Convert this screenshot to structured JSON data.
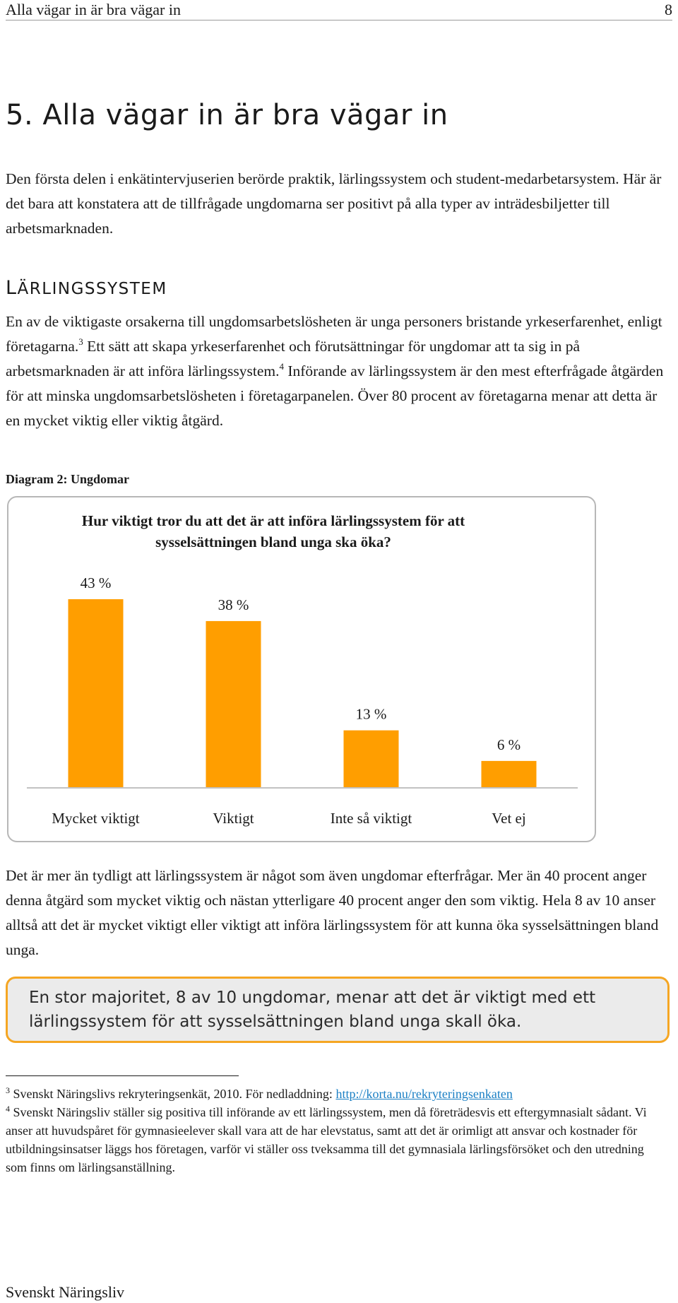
{
  "header": {
    "title": "Alla vägar in är bra vägar in",
    "page_number": "8"
  },
  "section_title": "5.   Alla vägar in är bra vägar in",
  "intro_paragraph": "Den första delen i enkätintervjuserien berörde praktik, lärlingssystem och student-medarbetarsystem. Här är det bara att konstatera att de tillfrågade ungdomarna ser positivt på alla typer av inträdesbiljetter till arbetsmarknaden.",
  "subheading": {
    "first_letter": "L",
    "rest": "ärlingssystem"
  },
  "para2": {
    "part1": "En av de viktigaste orsakerna till ungdomsarbetslösheten är unga personers bristande yrkeserfarenhet, enligt företagarna.",
    "fn1": "3",
    "part2": " Ett sätt att skapa yrkeserfarenhet och förutsättningar för ungdomar att ta sig in på arbetsmarknaden är att införa lärlingssystem.",
    "fn2": "4",
    "part3": " Införande av lärlingssystem är den mest efterfrågade åtgärden för att minska ungdomsarbetslösheten i företagarpanelen. Över 80 procent av företagarna menar att detta är en mycket viktig eller viktig åtgärd."
  },
  "diagram_caption": "Diagram 2: Ungdomar",
  "chart_data": {
    "type": "bar",
    "title": "Hur viktigt tror du att det är att införa lärlingssystem för att sysselsättningen bland unga ska öka?",
    "categories": [
      "Mycket viktigt",
      "Viktigt",
      "Inte så viktigt",
      "Vet ej"
    ],
    "values": [
      43,
      38,
      13,
      6
    ],
    "value_labels": [
      "43 %",
      "38 %",
      "13 %",
      "6 %"
    ],
    "ylim": [
      0,
      45
    ],
    "bar_color": "#ff9e00",
    "grid": false,
    "legend": false
  },
  "para3": "Det är mer än tydligt att lärlingssystem är något som även ungdomar efterfrågar. Mer än 40 procent anger denna åtgärd som mycket viktig och nästan ytterligare 40 procent anger den som viktig. Hela 8 av 10 anser alltså att det är mycket viktigt eller viktigt att införa lärlingssystem för att kunna öka sysselsättningen bland unga.",
  "callout": {
    "text": "En stor majoritet, 8 av 10 ungdomar, menar att det är viktigt med ett lärlingssystem för att sysselsättningen bland unga skall öka.",
    "border_color": "#f5a623"
  },
  "footnotes": {
    "fn3": {
      "num": "3",
      "text": " Svenskt Näringslivs rekryteringsenkät, 2010. För nedladdning: ",
      "link": "http://korta.nu/rekryteringsenkaten"
    },
    "fn4": {
      "num": "4",
      "text": " Svenskt Näringsliv ställer sig positiva till införande av ett lärlingssystem, men då företrädesvis ett eftergymnasialt sådant. Vi anser att huvudspåret för gymnasieelever skall vara att de har elevstatus, samt att det är orimligt att ansvar och kostnader för utbildningsinsatser läggs hos företagen, varför vi ställer oss tveksamma till det gymnasiala lärlingsförsöket och den utredning som finns om lärlingsanställning."
    }
  },
  "footer": "Svenskt Näringsliv"
}
